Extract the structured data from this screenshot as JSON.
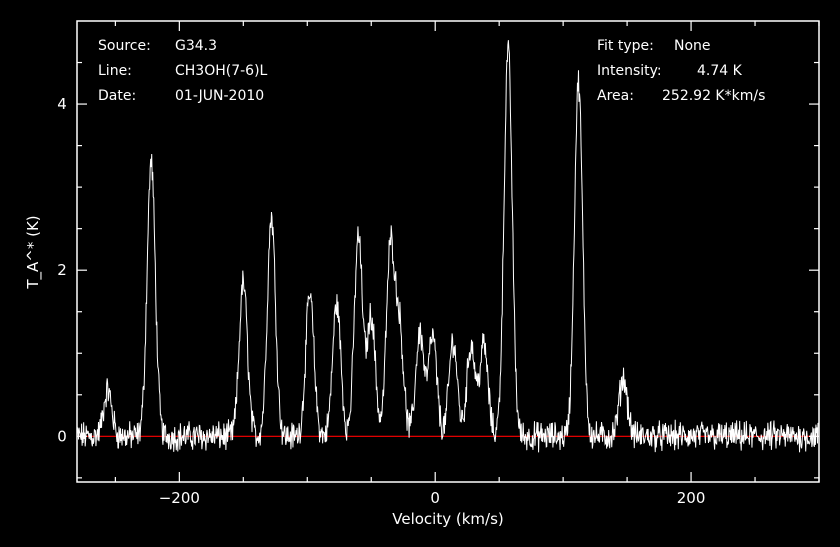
{
  "header_left": {
    "source_label": "Source:",
    "source_value": "G34.3",
    "line_label": "Line:",
    "line_value": "CH3OH(7-6)L",
    "date_label": "Date:",
    "date_value": "01-JUN-2010"
  },
  "header_right": {
    "fit_label": "Fit type:",
    "fit_value": "None",
    "intensity_label": "Intensity:",
    "intensity_value": "4.74 K",
    "area_label": "Area:",
    "area_value": "252.92 K*km/s"
  },
  "chart_data": {
    "type": "line",
    "xlabel": "Velocity (km/s)",
    "ylabel": "T_A^* (K)",
    "xlim": [
      -280,
      300
    ],
    "ylim": [
      -0.55,
      5.0
    ],
    "x_ticks": [
      -200,
      0,
      200
    ],
    "y_ticks": [
      0,
      2,
      4
    ],
    "x_tick_labels": [
      "−200",
      "0",
      "200"
    ],
    "y_tick_labels": [
      "0",
      "2",
      "4"
    ],
    "baseline": 0,
    "colors": {
      "spectrum": "#ffffff",
      "baseline": "#ff0000",
      "frame": "#ffffff",
      "background": "#000000"
    },
    "grid": false,
    "peaks": [
      {
        "x": -256,
        "y": 0.55
      },
      {
        "x": -222,
        "y": 3.3
      },
      {
        "x": -150,
        "y": 1.85
      },
      {
        "x": -128,
        "y": 2.65
      },
      {
        "x": -98,
        "y": 1.7
      },
      {
        "x": -77,
        "y": 1.6
      },
      {
        "x": -60,
        "y": 2.4
      },
      {
        "x": -50,
        "y": 1.45
      },
      {
        "x": -35,
        "y": 2.25
      },
      {
        "x": -28,
        "y": 1.3
      },
      {
        "x": -12,
        "y": 1.25
      },
      {
        "x": -2,
        "y": 1.2
      },
      {
        "x": 14,
        "y": 1.15
      },
      {
        "x": 28,
        "y": 1.1
      },
      {
        "x": 38,
        "y": 1.1
      },
      {
        "x": 57,
        "y": 4.65
      },
      {
        "x": 112,
        "y": 4.25
      },
      {
        "x": 147,
        "y": 0.7
      }
    ]
  }
}
